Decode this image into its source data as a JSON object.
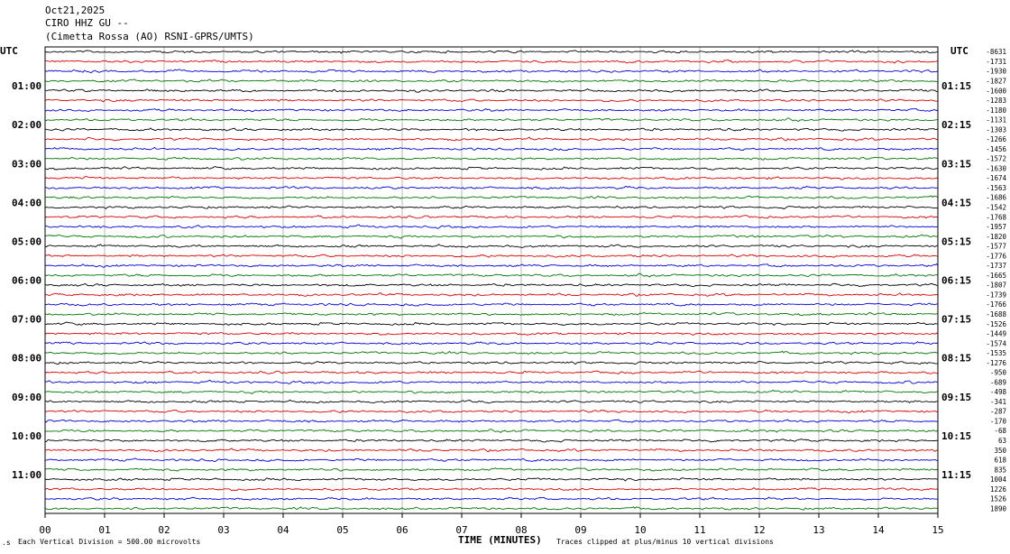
{
  "header": {
    "date": "Oct21,2025",
    "station": "CIRO HHZ GU --",
    "location": "(Cimetta Rossa (AO) RSNI-GPRS/UMTS)"
  },
  "timezone_left": "UTC",
  "timezone_right": "UTC",
  "footer": {
    "scale_note": "Each Vertical Division =  500.00 microvolts",
    "xlabel": "TIME (MINUTES)",
    "clip_note": "Traces clipped at plus/minus 10 vertical divisions",
    "corner_mark": ".s"
  },
  "chart_data": {
    "type": "line",
    "title": "CIRO HHZ GU --",
    "xlabel": "TIME (MINUTES)",
    "ylabel": "",
    "xlim": [
      0,
      15
    ],
    "x_ticks": [
      "00",
      "01",
      "02",
      "03",
      "04",
      "05",
      "06",
      "07",
      "08",
      "09",
      "10",
      "11",
      "12",
      "13",
      "14",
      "15"
    ],
    "trace_colors": [
      "#000000",
      "#dd0000",
      "#0000dd",
      "#007700"
    ],
    "grid": true,
    "left_hour_labels": [
      "01:00",
      "02:00",
      "03:00",
      "04:00",
      "05:00",
      "06:00",
      "07:00",
      "08:00",
      "09:00",
      "10:00",
      "11:00"
    ],
    "right_hour_labels": [
      "01:15",
      "02:15",
      "03:15",
      "04:15",
      "05:15",
      "06:15",
      "07:15",
      "08:15",
      "09:15",
      "10:15",
      "11:15"
    ],
    "row_offsets": [
      "-8631",
      "-1731",
      "-1930",
      "-1827",
      "-1600",
      "-1283",
      "-1180",
      "-1131",
      "-1303",
      "-1266",
      "-1456",
      "-1572",
      "-1630",
      "-1674",
      "-1563",
      "-1686",
      "-1542",
      "-1768",
      "-1957",
      "-1820",
      "-1577",
      "-1776",
      "-1737",
      "-1665",
      "-1807",
      "-1739",
      "-1766",
      "-1688",
      "-1526",
      "-1449",
      "-1574",
      "-1535",
      "-1276",
      "-950",
      "-689",
      "-498",
      "-341",
      "-287",
      "-170",
      "-68",
      "63",
      "350",
      "618",
      "835",
      "1004",
      "1226",
      "1526",
      "1890"
    ]
  }
}
